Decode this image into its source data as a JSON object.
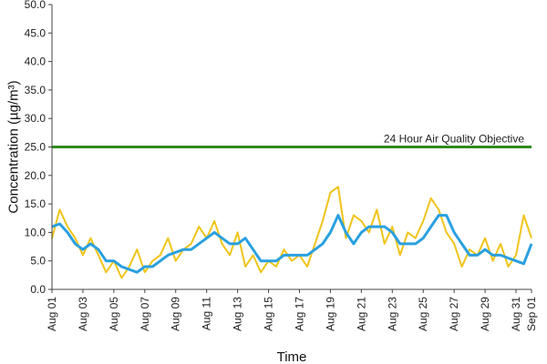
{
  "chart_data": {
    "type": "line",
    "xlabel": "Time",
    "ylabel": "Concentration (µg/m³)",
    "ylim": [
      0,
      50
    ],
    "yticks": [
      "0.0",
      "5.0",
      "10.0",
      "15.0",
      "20.0",
      "25.0",
      "30.0",
      "35.0",
      "40.0",
      "45.0",
      "50.0"
    ],
    "xlim": [
      "2023-08-01",
      "2023-09-01"
    ],
    "xticks": [
      {
        "date": "2023-08-01",
        "label": "Aug 01"
      },
      {
        "date": "2023-08-03",
        "label": "Aug 03"
      },
      {
        "date": "2023-08-05",
        "label": "Aug 05"
      },
      {
        "date": "2023-08-07",
        "label": "Aug 07"
      },
      {
        "date": "2023-08-09",
        "label": "Aug 09"
      },
      {
        "date": "2023-08-11",
        "label": "Aug 11"
      },
      {
        "date": "2023-08-13",
        "label": "Aug 13"
      },
      {
        "date": "2023-08-15",
        "label": "Aug 15"
      },
      {
        "date": "2023-08-17",
        "label": "Aug 17"
      },
      {
        "date": "2023-08-19",
        "label": "Aug 19"
      },
      {
        "date": "2023-08-21",
        "label": "Aug 21"
      },
      {
        "date": "2023-08-23",
        "label": "Aug 23"
      },
      {
        "date": "2023-08-25",
        "label": "Aug 25"
      },
      {
        "date": "2023-08-27",
        "label": "Aug 27"
      },
      {
        "date": "2023-08-29",
        "label": "Aug 29"
      },
      {
        "date": "2023-08-31",
        "label": "Aug 31"
      },
      {
        "date": "2023-09-01",
        "label": "Sep 01"
      }
    ],
    "grid": false,
    "reference_line": {
      "value": 25.0,
      "label": "24 Hour Air Quality Objective",
      "color": "#2e8b1e"
    },
    "series": [
      {
        "color": "#f0c419",
        "x": [
          "2023-08-01",
          "2023-08-01 12:00",
          "2023-08-02",
          "2023-08-02 12:00",
          "2023-08-03",
          "2023-08-03 12:00",
          "2023-08-04",
          "2023-08-04 12:00",
          "2023-08-05",
          "2023-08-05 12:00",
          "2023-08-06",
          "2023-08-06 12:00",
          "2023-08-07",
          "2023-08-07 12:00",
          "2023-08-08",
          "2023-08-08 12:00",
          "2023-08-09",
          "2023-08-09 12:00",
          "2023-08-10",
          "2023-08-10 12:00",
          "2023-08-11",
          "2023-08-11 12:00",
          "2023-08-12",
          "2023-08-12 12:00",
          "2023-08-13",
          "2023-08-13 12:00",
          "2023-08-14",
          "2023-08-14 12:00",
          "2023-08-15",
          "2023-08-15 12:00",
          "2023-08-16",
          "2023-08-16 12:00",
          "2023-08-17",
          "2023-08-17 12:00",
          "2023-08-18",
          "2023-08-18 12:00",
          "2023-08-19",
          "2023-08-19 12:00",
          "2023-08-20",
          "2023-08-20 12:00",
          "2023-08-21",
          "2023-08-21 12:00",
          "2023-08-22",
          "2023-08-22 12:00",
          "2023-08-23",
          "2023-08-23 12:00",
          "2023-08-24",
          "2023-08-24 12:00",
          "2023-08-25",
          "2023-08-25 12:00",
          "2023-08-26",
          "2023-08-26 12:00",
          "2023-08-27",
          "2023-08-27 12:00",
          "2023-08-28",
          "2023-08-28 12:00",
          "2023-08-29",
          "2023-08-29 12:00",
          "2023-08-30",
          "2023-08-30 12:00",
          "2023-08-31",
          "2023-08-31 12:00",
          "2023-09-01"
        ],
        "y": [
          9,
          14,
          11,
          9,
          6,
          9,
          6,
          3,
          5,
          2,
          4,
          7,
          3,
          5,
          6,
          9,
          5,
          7,
          8,
          11,
          9,
          12,
          8,
          6,
          10,
          4,
          6,
          3,
          5,
          4,
          7,
          5,
          6,
          4,
          8,
          12,
          17,
          18,
          9,
          13,
          12,
          10,
          14,
          8,
          11,
          6,
          10,
          9,
          12,
          16,
          14,
          10,
          8,
          4,
          7,
          6,
          9,
          5,
          8,
          4,
          6,
          13,
          9
        ]
      },
      {
        "color": "#2aa0e0",
        "x": [
          "2023-08-01",
          "2023-08-01 12:00",
          "2023-08-02",
          "2023-08-02 12:00",
          "2023-08-03",
          "2023-08-03 12:00",
          "2023-08-04",
          "2023-08-04 12:00",
          "2023-08-05",
          "2023-08-05 12:00",
          "2023-08-06",
          "2023-08-06 12:00",
          "2023-08-07",
          "2023-08-07 12:00",
          "2023-08-08",
          "2023-08-08 12:00",
          "2023-08-09",
          "2023-08-09 12:00",
          "2023-08-10",
          "2023-08-10 12:00",
          "2023-08-11",
          "2023-08-11 12:00",
          "2023-08-12",
          "2023-08-12 12:00",
          "2023-08-13",
          "2023-08-13 12:00",
          "2023-08-14",
          "2023-08-14 12:00",
          "2023-08-15",
          "2023-08-15 12:00",
          "2023-08-16",
          "2023-08-16 12:00",
          "2023-08-17",
          "2023-08-17 12:00",
          "2023-08-18",
          "2023-08-18 12:00",
          "2023-08-19",
          "2023-08-19 12:00",
          "2023-08-20",
          "2023-08-20 12:00",
          "2023-08-21",
          "2023-08-21 12:00",
          "2023-08-22",
          "2023-08-22 12:00",
          "2023-08-23",
          "2023-08-23 12:00",
          "2023-08-24",
          "2023-08-24 12:00",
          "2023-08-25",
          "2023-08-25 12:00",
          "2023-08-26",
          "2023-08-26 12:00",
          "2023-08-27",
          "2023-08-27 12:00",
          "2023-08-28",
          "2023-08-28 12:00",
          "2023-08-29",
          "2023-08-29 12:00",
          "2023-08-30",
          "2023-08-30 12:00",
          "2023-08-31",
          "2023-08-31 12:00",
          "2023-09-01"
        ],
        "y": [
          11,
          11.5,
          10,
          8,
          7,
          8,
          7,
          5,
          5,
          4,
          3.5,
          3,
          4,
          4,
          5,
          6,
          6.5,
          7,
          7,
          8,
          9,
          10,
          9,
          8,
          8,
          9,
          7,
          5,
          5,
          5,
          6,
          6,
          6,
          6,
          7,
          8,
          10,
          13,
          10,
          8,
          10,
          11,
          11,
          11,
          10,
          8,
          8,
          8,
          9,
          11,
          13,
          13,
          10,
          8,
          6,
          6,
          7,
          6,
          6,
          5.5,
          5,
          4.5,
          8
        ]
      }
    ]
  }
}
